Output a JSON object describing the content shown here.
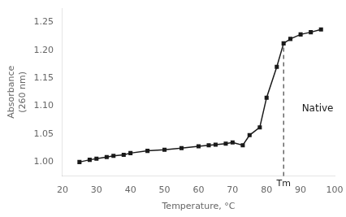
{
  "chart_data": {
    "type": "line",
    "xlabel": "Temperature, °C",
    "ylabel": [
      "Absorbance",
      "(260 nm)"
    ],
    "x": [
      25,
      28,
      30,
      33,
      35,
      38,
      40,
      45,
      50,
      55,
      60,
      63,
      65,
      68,
      70,
      73,
      75,
      78,
      80,
      83,
      85,
      87,
      90,
      93,
      96
    ],
    "values": [
      1.0,
      1.004,
      1.006,
      1.009,
      1.011,
      1.013,
      1.016,
      1.02,
      1.022,
      1.025,
      1.028,
      1.03,
      1.031,
      1.033,
      1.035,
      1.03,
      1.048,
      1.062,
      1.115,
      1.17,
      1.212,
      1.22,
      1.228,
      1.232,
      1.237
    ],
    "color": "#1a1a1a",
    "marker": "square",
    "xlim": [
      20,
      100
    ],
    "ylim": [
      0.975,
      1.275
    ],
    "xticks": [
      20,
      30,
      40,
      50,
      60,
      70,
      80,
      90,
      100
    ],
    "yticks": [
      {
        "value": 1.0,
        "label": "1.00"
      },
      {
        "value": 1.05,
        "label": "1.05"
      },
      {
        "value": 1.1,
        "label": "1.10"
      },
      {
        "value": 1.15,
        "label": "1.15"
      },
      {
        "value": 1.2,
        "label": "1.20"
      },
      {
        "value": 1.25,
        "label": "1.25"
      }
    ],
    "grid": false,
    "reference_lines": [
      {
        "x": 85,
        "y_end": 1.212,
        "line_style": "dashed",
        "color": "#1a1a1a"
      }
    ],
    "annotations": [
      {
        "text": "Tm",
        "x": 85
      },
      {
        "text": "Native",
        "x": 95,
        "y": 1.095
      }
    ]
  }
}
